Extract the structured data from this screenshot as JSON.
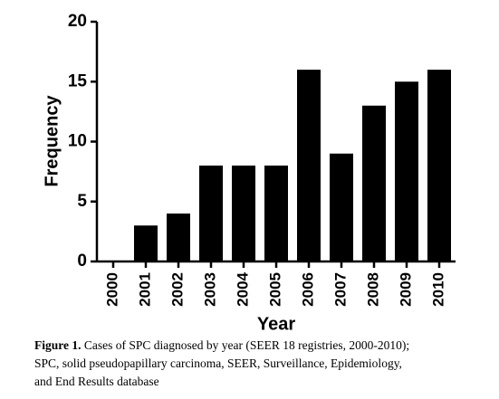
{
  "chart_data": {
    "type": "bar",
    "categories": [
      "2000",
      "2001",
      "2002",
      "2003",
      "2004",
      "2005",
      "2006",
      "2007",
      "2008",
      "2009",
      "2010"
    ],
    "values": [
      0,
      3,
      4,
      8,
      8,
      8,
      16,
      9,
      13,
      15,
      16
    ],
    "color": "#000000",
    "ylim": [
      0,
      20
    ],
    "yticks": [
      0,
      5,
      10,
      15,
      20
    ],
    "xlabel": "Year",
    "ylabel": "Frequency"
  },
  "caption": {
    "label": "Figure 1.",
    "lines": [
      " Cases of SPC diagnosed by year (SEER 18 registries, 2000-2010);",
      "SPC, solid pseudopapillary carcinoma, SEER, Surveillance, Epidemiology,",
      "and End Results database"
    ]
  }
}
